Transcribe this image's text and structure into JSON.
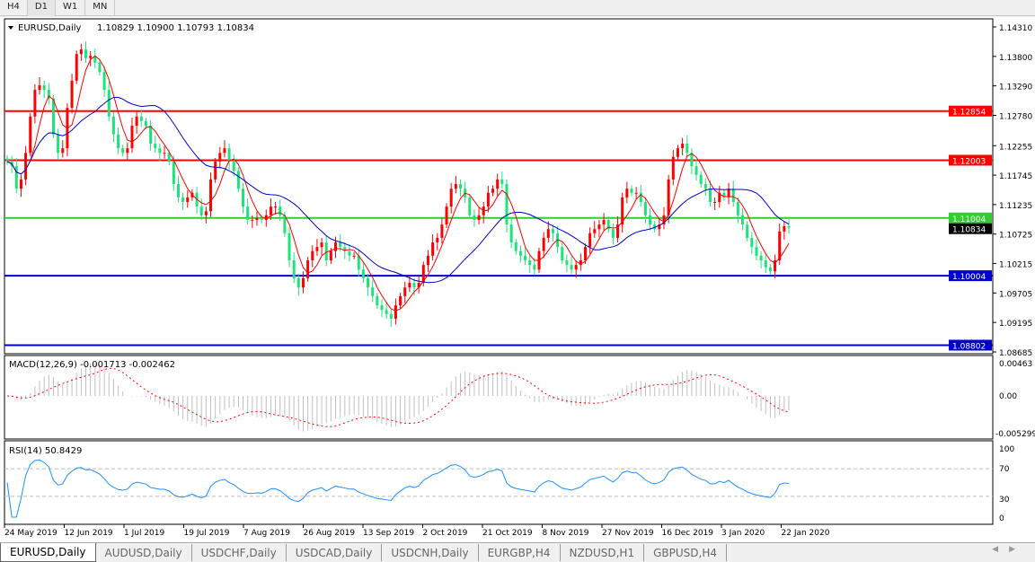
{
  "timeframes": [
    "H4",
    "D1",
    "W1",
    "MN"
  ],
  "active_timeframe": "D1",
  "main": {
    "title": "EURUSD,Daily",
    "ohlc": "1.10829 1.10900 1.10793 1.10834"
  },
  "macd": {
    "label": "MACD(12,26,9) -0.001713 -0.002462",
    "ticks": [
      "0.00463",
      "0.00",
      "-0.005299"
    ]
  },
  "rsi": {
    "label": "RSI(14) 50.8429",
    "ticks": [
      "100",
      "70",
      "30",
      "0"
    ]
  },
  "tabs": [
    "EURUSD,Daily",
    "AUDUSD,Daily",
    "USDCHF,Daily",
    "USDCAD,Daily",
    "USDCNH,Daily",
    "EURGBP,H4",
    "NZDUSD,H1",
    "GBPUSD,H4"
  ],
  "colors": {
    "bull": "#ff0000",
    "bear": "#1ee27a",
    "fast_ma": "#ff0000",
    "slow_ma": "#0000c8",
    "macd_hist": "#c0c0c0",
    "macd_signal": "#ff0000",
    "rsi": "#1e90ff"
  },
  "chart_data": {
    "type": "candlestick",
    "symbol": "EURUSD",
    "timeframe": "Daily",
    "x_tick_labels": [
      "24 May 2019",
      "12 Jun 2019",
      "1 Jul 2019",
      "19 Jul 2019",
      "7 Aug 2019",
      "26 Aug 2019",
      "13 Sep 2019",
      "2 Oct 2019",
      "21 Oct 2019",
      "8 Nov 2019",
      "27 Nov 2019",
      "16 Dec 2019",
      "3 Jan 2020",
      "22 Jan 2020"
    ],
    "y_tick_labels": [
      "1.14310",
      "1.13800",
      "1.13290",
      "1.12780",
      "1.12255",
      "1.11745",
      "1.11235",
      "1.10725",
      "1.10215",
      "1.09705",
      "1.09195",
      "1.08685"
    ],
    "ylim": [
      1.08685,
      1.1431
    ],
    "current_price": {
      "label": "1.10834",
      "value": 1.10834
    },
    "horizontal_lines": [
      {
        "label": "1.12854",
        "value": 1.12854,
        "color": "#ff0000"
      },
      {
        "label": "1.12003",
        "value": 1.12003,
        "color": "#ff0000"
      },
      {
        "label": "1.11004",
        "value": 1.11004,
        "color": "#33cc33"
      },
      {
        "label": "1.10004",
        "value": 1.10004,
        "color": "#0000cc"
      },
      {
        "label": "1.08802",
        "value": 1.08802,
        "color": "#0000cc"
      }
    ],
    "closes": [
      1.1198,
      1.119,
      1.1151,
      1.1167,
      1.1213,
      1.1276,
      1.1322,
      1.133,
      1.1322,
      1.1307,
      1.1245,
      1.1213,
      1.1221,
      1.1291,
      1.1338,
      1.1384,
      1.1392,
      1.1377,
      1.1381,
      1.1369,
      1.1353,
      1.1322,
      1.1276,
      1.1245,
      1.1221,
      1.1213,
      1.1221,
      1.126,
      1.1276,
      1.1268,
      1.126,
      1.1229,
      1.1221,
      1.1213,
      1.1213,
      1.1198,
      1.1159,
      1.1136,
      1.1128,
      1.1136,
      1.1144,
      1.112,
      1.1105,
      1.1112,
      1.1167,
      1.1198,
      1.1213,
      1.1221,
      1.1198,
      1.1182,
      1.1151,
      1.112,
      1.1097,
      1.1097,
      1.11,
      1.1097,
      1.1105,
      1.112,
      1.112,
      1.1105,
      1.1074,
      1.1027,
      1.0996,
      1.098,
      1.0996,
      1.1027,
      1.1043,
      1.105,
      1.1058,
      1.1027,
      1.1043,
      1.1058,
      1.105,
      1.1043,
      1.1035,
      1.1035,
      1.1011,
      1.0996,
      1.098,
      1.0965,
      1.0949,
      1.0941,
      1.0934,
      1.0926,
      1.0949,
      1.0965,
      1.098,
      1.0988,
      1.098,
      1.0988,
      1.1019,
      1.1035,
      1.1058,
      1.1066,
      1.1089,
      1.112,
      1.1151,
      1.1159,
      1.1151,
      1.1136,
      1.1105,
      1.1097,
      1.1105,
      1.112,
      1.1144,
      1.1151,
      1.1167,
      1.1159,
      1.1089,
      1.1058,
      1.1043,
      1.1035,
      1.1027,
      1.1019,
      1.1011,
      1.1043,
      1.1066,
      1.1081,
      1.1074,
      1.105,
      1.1027,
      1.1019,
      1.1011,
      1.1019,
      1.1027,
      1.105,
      1.1074,
      1.1081,
      1.1089,
      1.1097,
      1.1081,
      1.1066,
      1.1089,
      1.1136,
      1.1151,
      1.1144,
      1.1144,
      1.1128,
      1.1105,
      1.1089,
      1.1081,
      1.1089,
      1.1105,
      1.1167,
      1.1206,
      1.1221,
      1.1229,
      1.1213,
      1.119,
      1.1175,
      1.1159,
      1.1151,
      1.1128,
      1.1128,
      1.1144,
      1.1136,
      1.1151,
      1.1128,
      1.1105,
      1.1089,
      1.1066,
      1.105,
      1.1035,
      1.1027,
      1.1015,
      1.1008,
      1.1027,
      1.1077,
      1.1086,
      1.10834
    ]
  }
}
